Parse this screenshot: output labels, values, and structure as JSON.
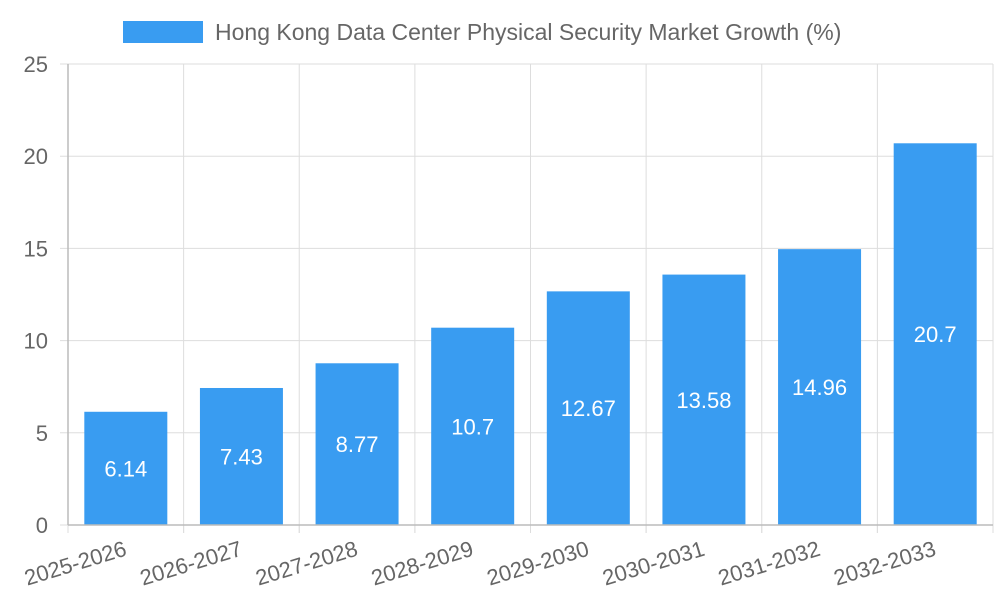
{
  "chart_data": {
    "type": "bar",
    "categories": [
      "2025-2026",
      "2026-2027",
      "2027-2028",
      "2028-2029",
      "2029-2030",
      "2030-2031",
      "2031-2032",
      "2032-2033"
    ],
    "series": [
      {
        "name": "Hong Kong Data Center Physical Security Market Growth (%)",
        "values": [
          6.14,
          7.43,
          8.77,
          10.7,
          12.67,
          13.58,
          14.96,
          20.7
        ],
        "color": "#399cf1"
      }
    ],
    "data_labels": [
      "6.14",
      "7.43",
      "8.77",
      "10.7",
      "12.67",
      "13.58",
      "14.96",
      "20.7"
    ],
    "ylim": [
      0,
      25
    ],
    "y_ticks": [
      "0",
      "5",
      "10",
      "15",
      "20",
      "25"
    ],
    "grid": true,
    "legend_position": "top-center",
    "colors": {
      "bar": "#399cf1",
      "grid": "#dddddd",
      "text": "#666666",
      "label": "#ffffff"
    }
  }
}
